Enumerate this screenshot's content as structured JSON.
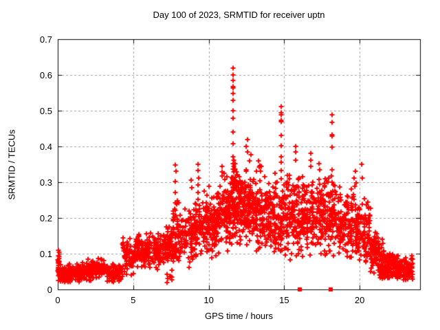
{
  "chart_data": {
    "type": "scatter",
    "title": "Day 100 of 2023, SRMTID for receiver uptn",
    "xlabel": "GPS time / hours",
    "ylabel": "SRMTID / TECUs",
    "xlim": [
      0,
      24
    ],
    "ylim": [
      0,
      0.7
    ],
    "grid": true,
    "legend": "none",
    "colors": {
      "marker": "#ff0000",
      "grid": "#9e9e9e",
      "border": "#000000",
      "background": "#ffffff",
      "text": "#000000"
    },
    "marker": {
      "shape": "plus",
      "size": 7,
      "color": "#ff0000"
    },
    "xticks": [
      {
        "v": 0,
        "label": "0"
      },
      {
        "v": 5,
        "label": "5"
      },
      {
        "v": 10,
        "label": "10"
      },
      {
        "v": 15,
        "label": "15"
      },
      {
        "v": 20,
        "label": "20"
      }
    ],
    "yticks": [
      {
        "v": 0.0,
        "label": "0"
      },
      {
        "v": 0.1,
        "label": "0.1"
      },
      {
        "v": 0.2,
        "label": "0.2"
      },
      {
        "v": 0.3,
        "label": "0.3"
      },
      {
        "v": 0.4,
        "label": "0.4"
      },
      {
        "v": 0.5,
        "label": "0.5"
      },
      {
        "v": 0.6,
        "label": "0.6"
      },
      {
        "v": 0.7,
        "label": "0.7"
      }
    ],
    "seed": 20231001,
    "series": [
      {
        "name": "srmtid-scatter",
        "render": "bins",
        "note": "dense + markers; bins are [x0,x1,count,meanY,sdY,minY,maxY] summarizing the cloud",
        "bins": [
          [
            0.0,
            0.15,
            25,
            0.06,
            0.03,
            0.02,
            0.11
          ],
          [
            0.15,
            0.7,
            55,
            0.038,
            0.012,
            0.02,
            0.07
          ],
          [
            0.7,
            1.5,
            75,
            0.045,
            0.015,
            0.02,
            0.095
          ],
          [
            1.5,
            2.2,
            65,
            0.05,
            0.015,
            0.025,
            0.085
          ],
          [
            2.2,
            3.2,
            85,
            0.055,
            0.016,
            0.025,
            0.09
          ],
          [
            3.2,
            4.3,
            80,
            0.048,
            0.015,
            0.02,
            0.08
          ],
          [
            4.3,
            5.0,
            65,
            0.09,
            0.027,
            0.04,
            0.16
          ],
          [
            5.0,
            6.0,
            95,
            0.105,
            0.022,
            0.06,
            0.16
          ],
          [
            6.0,
            7.0,
            95,
            0.11,
            0.024,
            0.05,
            0.17
          ],
          [
            7.2,
            7.6,
            8,
            0.04,
            0.012,
            0.02,
            0.06
          ],
          [
            7.0,
            7.6,
            70,
            0.12,
            0.028,
            0.06,
            0.2
          ],
          [
            7.6,
            7.95,
            45,
            0.14,
            0.05,
            0.07,
            0.33
          ],
          [
            7.95,
            9.0,
            95,
            0.15,
            0.035,
            0.06,
            0.27
          ],
          [
            9.0,
            9.5,
            60,
            0.17,
            0.04,
            0.09,
            0.28
          ],
          [
            9.5,
            10.5,
            115,
            0.185,
            0.042,
            0.08,
            0.3
          ],
          [
            10.5,
            11.5,
            130,
            0.215,
            0.05,
            0.1,
            0.33
          ],
          [
            11.5,
            12.2,
            130,
            0.24,
            0.055,
            0.1,
            0.37
          ],
          [
            12.2,
            13.0,
            120,
            0.23,
            0.05,
            0.1,
            0.39
          ],
          [
            13.0,
            14.0,
            130,
            0.21,
            0.05,
            0.09,
            0.35
          ],
          [
            14.0,
            14.9,
            110,
            0.2,
            0.048,
            0.09,
            0.33
          ],
          [
            14.9,
            16.0,
            125,
            0.215,
            0.05,
            0.08,
            0.38
          ],
          [
            16.0,
            17.0,
            110,
            0.21,
            0.05,
            0.06,
            0.36
          ],
          [
            17.0,
            18.0,
            110,
            0.215,
            0.05,
            0.09,
            0.34
          ],
          [
            18.0,
            18.5,
            55,
            0.2,
            0.05,
            0.09,
            0.34
          ],
          [
            18.5,
            19.3,
            85,
            0.18,
            0.045,
            0.08,
            0.3
          ],
          [
            19.3,
            20.1,
            80,
            0.17,
            0.05,
            0.07,
            0.3
          ],
          [
            20.1,
            20.7,
            65,
            0.15,
            0.045,
            0.06,
            0.27
          ],
          [
            20.7,
            21.3,
            75,
            0.1,
            0.03,
            0.04,
            0.17
          ],
          [
            21.3,
            22.5,
            140,
            0.067,
            0.02,
            0.03,
            0.12
          ],
          [
            22.5,
            23.5,
            110,
            0.055,
            0.018,
            0.02,
            0.1
          ]
        ]
      },
      {
        "name": "srmtid-peaks",
        "render": "points",
        "note": "explicit outlier / spike points read from the plot",
        "points": [
          [
            11.6,
            0.62
          ],
          [
            11.62,
            0.6
          ],
          [
            11.61,
            0.585
          ],
          [
            11.615,
            0.567
          ],
          [
            11.605,
            0.563
          ],
          [
            11.62,
            0.548
          ],
          [
            11.6,
            0.528
          ],
          [
            11.62,
            0.5
          ],
          [
            11.61,
            0.478
          ],
          [
            11.6,
            0.44
          ],
          [
            11.62,
            0.408
          ],
          [
            11.61,
            0.372
          ],
          [
            11.6,
            0.352
          ],
          [
            14.8,
            0.512
          ],
          [
            14.78,
            0.495
          ],
          [
            14.8,
            0.488
          ],
          [
            14.79,
            0.474
          ],
          [
            14.81,
            0.47
          ],
          [
            14.8,
            0.43
          ],
          [
            14.79,
            0.402
          ],
          [
            14.78,
            0.372
          ],
          [
            14.8,
            0.355
          ],
          [
            14.81,
            0.332
          ],
          [
            14.79,
            0.31
          ],
          [
            18.15,
            0.488
          ],
          [
            18.17,
            0.468
          ],
          [
            18.15,
            0.432
          ],
          [
            18.18,
            0.428
          ],
          [
            18.16,
            0.398
          ],
          [
            18.17,
            0.335
          ],
          [
            18.14,
            0.318
          ],
          [
            18.19,
            0.3
          ],
          [
            15.75,
            0.4
          ],
          [
            15.77,
            0.385
          ],
          [
            15.74,
            0.362
          ],
          [
            16.75,
            0.38
          ],
          [
            16.78,
            0.362
          ],
          [
            16.74,
            0.345
          ],
          [
            12.55,
            0.42
          ],
          [
            12.5,
            0.4
          ],
          [
            12.58,
            0.385
          ],
          [
            9.3,
            0.35
          ],
          [
            9.28,
            0.332
          ],
          [
            9.32,
            0.312
          ],
          [
            9.29,
            0.292
          ],
          [
            9.31,
            0.272
          ],
          [
            9.3,
            0.252
          ],
          [
            7.8,
            0.348
          ],
          [
            7.82,
            0.33
          ],
          [
            7.79,
            0.302
          ],
          [
            7.81,
            0.272
          ],
          [
            7.78,
            0.242
          ],
          [
            7.8,
            0.222
          ],
          [
            7.82,
            0.205
          ],
          [
            8.85,
            0.305
          ],
          [
            8.88,
            0.285
          ],
          [
            10.9,
            0.345
          ],
          [
            10.88,
            0.328
          ],
          [
            13.3,
            0.36
          ],
          [
            13.35,
            0.342
          ],
          [
            17.3,
            0.352
          ],
          [
            17.35,
            0.334
          ],
          [
            20.15,
            0.35
          ],
          [
            20.18,
            0.312
          ],
          [
            19.7,
            0.33
          ],
          [
            19.65,
            0.312
          ],
          [
            19.75,
            0.298
          ],
          [
            21.5,
            0.14
          ],
          [
            21.55,
            0.128
          ],
          [
            21.45,
            0.118
          ],
          [
            0.05,
            0.11
          ],
          [
            0.08,
            0.103
          ]
        ]
      },
      {
        "name": "zero-flags",
        "render": "squares",
        "note": "filled red squares sitting on the x-axis",
        "size": 6,
        "points": [
          [
            16.05,
            0.0
          ],
          [
            18.1,
            0.0
          ]
        ]
      }
    ]
  }
}
